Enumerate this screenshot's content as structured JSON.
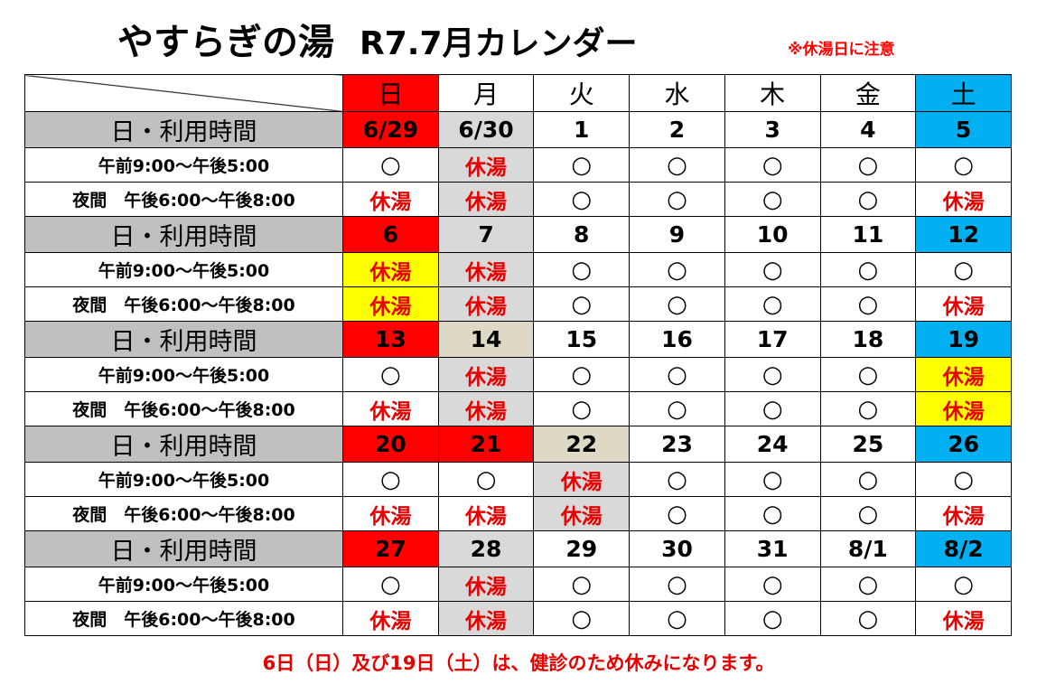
{
  "title": "やすらぎの湯",
  "subtitle": "R7.7月カレンダー",
  "note": "※休湯日に注意",
  "days": [
    "日",
    "月",
    "火",
    "水",
    "木",
    "金",
    "土"
  ],
  "date_row_label": "日・利用時間",
  "slot_labels": [
    "午前9:00～午後5:00",
    "夜間　午後6:00～午後8:00"
  ],
  "colors": {
    "sunday": "#ff0000",
    "saturday": "#00b0f0",
    "closed_text": "#e60000",
    "closed_gray": "#d9d9d9",
    "closed_beige": "#ddd9c4",
    "checkup_yellow": "#ffff00",
    "label_gray": "#c0c0c0"
  },
  "weeks": [
    {
      "dates": [
        {
          "text": "6/29",
          "bg": "red"
        },
        {
          "text": "6/30",
          "bg": "lgray"
        },
        {
          "text": "1"
        },
        {
          "text": "2"
        },
        {
          "text": "3"
        },
        {
          "text": "4"
        },
        {
          "text": "5",
          "bg": "blue"
        }
      ],
      "slots": [
        [
          {
            "text": "○"
          },
          {
            "text": "休湯",
            "closed": true,
            "bg": "lgray"
          },
          {
            "text": "○"
          },
          {
            "text": "○"
          },
          {
            "text": "○"
          },
          {
            "text": "○"
          },
          {
            "text": "○"
          }
        ],
        [
          {
            "text": "休湯",
            "closed": true
          },
          {
            "text": "休湯",
            "closed": true,
            "bg": "lgray"
          },
          {
            "text": "○"
          },
          {
            "text": "○"
          },
          {
            "text": "○"
          },
          {
            "text": "○"
          },
          {
            "text": "休湯",
            "closed": true
          }
        ]
      ]
    },
    {
      "dates": [
        {
          "text": "6",
          "bg": "red"
        },
        {
          "text": "7",
          "bg": "lgray"
        },
        {
          "text": "8"
        },
        {
          "text": "9"
        },
        {
          "text": "10"
        },
        {
          "text": "11"
        },
        {
          "text": "12",
          "bg": "blue"
        }
      ],
      "slots": [
        [
          {
            "text": "休湯",
            "closed": true,
            "bg": "yellow"
          },
          {
            "text": "休湯",
            "closed": true,
            "bg": "lgray"
          },
          {
            "text": "○"
          },
          {
            "text": "○"
          },
          {
            "text": "○"
          },
          {
            "text": "○"
          },
          {
            "text": "○"
          }
        ],
        [
          {
            "text": "休湯",
            "closed": true,
            "bg": "yellow"
          },
          {
            "text": "休湯",
            "closed": true,
            "bg": "lgray"
          },
          {
            "text": "○"
          },
          {
            "text": "○"
          },
          {
            "text": "○"
          },
          {
            "text": "○"
          },
          {
            "text": "休湯",
            "closed": true
          }
        ]
      ]
    },
    {
      "dates": [
        {
          "text": "13",
          "bg": "red"
        },
        {
          "text": "14",
          "bg": "beige"
        },
        {
          "text": "15"
        },
        {
          "text": "16"
        },
        {
          "text": "17"
        },
        {
          "text": "18"
        },
        {
          "text": "19",
          "bg": "blue"
        }
      ],
      "slots": [
        [
          {
            "text": "○"
          },
          {
            "text": "休湯",
            "closed": true,
            "bg": "lgray"
          },
          {
            "text": "○"
          },
          {
            "text": "○"
          },
          {
            "text": "○"
          },
          {
            "text": "○"
          },
          {
            "text": "休湯",
            "closed": true,
            "bg": "yellow"
          }
        ],
        [
          {
            "text": "休湯",
            "closed": true
          },
          {
            "text": "休湯",
            "closed": true,
            "bg": "lgray"
          },
          {
            "text": "○"
          },
          {
            "text": "○"
          },
          {
            "text": "○"
          },
          {
            "text": "○"
          },
          {
            "text": "休湯",
            "closed": true,
            "bg": "yellow"
          }
        ]
      ]
    },
    {
      "dates": [
        {
          "text": "20",
          "bg": "red"
        },
        {
          "text": "21",
          "bg": "red"
        },
        {
          "text": "22",
          "bg": "beige"
        },
        {
          "text": "23"
        },
        {
          "text": "24"
        },
        {
          "text": "25"
        },
        {
          "text": "26",
          "bg": "blue"
        }
      ],
      "slots": [
        [
          {
            "text": "○"
          },
          {
            "text": "○"
          },
          {
            "text": "休湯",
            "closed": true,
            "bg": "lgray"
          },
          {
            "text": "○"
          },
          {
            "text": "○"
          },
          {
            "text": "○"
          },
          {
            "text": "○"
          }
        ],
        [
          {
            "text": "休湯",
            "closed": true
          },
          {
            "text": "休湯",
            "closed": true
          },
          {
            "text": "休湯",
            "closed": true,
            "bg": "lgray"
          },
          {
            "text": "○"
          },
          {
            "text": "○"
          },
          {
            "text": "○"
          },
          {
            "text": "休湯",
            "closed": true
          }
        ]
      ]
    },
    {
      "dates": [
        {
          "text": "27",
          "bg": "red"
        },
        {
          "text": "28",
          "bg": "lgray"
        },
        {
          "text": "29"
        },
        {
          "text": "30"
        },
        {
          "text": "31"
        },
        {
          "text": "8/1"
        },
        {
          "text": "8/2",
          "bg": "blue"
        }
      ],
      "slots": [
        [
          {
            "text": "○"
          },
          {
            "text": "休湯",
            "closed": true,
            "bg": "lgray"
          },
          {
            "text": "○"
          },
          {
            "text": "○"
          },
          {
            "text": "○"
          },
          {
            "text": "○"
          },
          {
            "text": "○"
          }
        ],
        [
          {
            "text": "休湯",
            "closed": true
          },
          {
            "text": "休湯",
            "closed": true,
            "bg": "lgray"
          },
          {
            "text": "○"
          },
          {
            "text": "○"
          },
          {
            "text": "○"
          },
          {
            "text": "○"
          },
          {
            "text": "休湯",
            "closed": true
          }
        ]
      ]
    }
  ],
  "footer": "6日（日）及び19日（土）は、健診のため休みになります。"
}
